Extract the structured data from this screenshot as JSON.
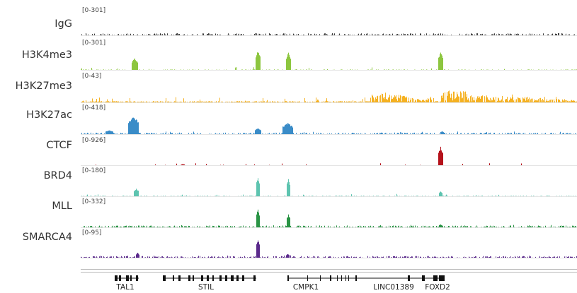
{
  "tracks": [
    {
      "name": "IgG",
      "range": "[0-301]",
      "color": "#444444"
    },
    {
      "name": "H3K4me3",
      "range": "[0-301]",
      "color": "#8dc63f"
    },
    {
      "name": "H3K27me3",
      "range": "[0-43]",
      "color": "#f5b121"
    },
    {
      "name": "H3K27ac",
      "range": "[0-418]",
      "color": "#3a8cc8"
    },
    {
      "name": "CTCF",
      "range": "[0-926]",
      "color": "#b5121b"
    },
    {
      "name": "BRD4",
      "range": "[0-180]",
      "color": "#5ec4b0"
    },
    {
      "name": "MLL",
      "range": "[0-332]",
      "color": "#2a9445"
    },
    {
      "name": "SMARCA4",
      "range": "[0-95]",
      "color": "#5b2a8c"
    }
  ],
  "genes": [
    {
      "name": "TAL1"
    },
    {
      "name": "STIL"
    },
    {
      "name": "CMPK1"
    },
    {
      "name": "LINC01389"
    },
    {
      "name": "FOXD2"
    }
  ]
}
